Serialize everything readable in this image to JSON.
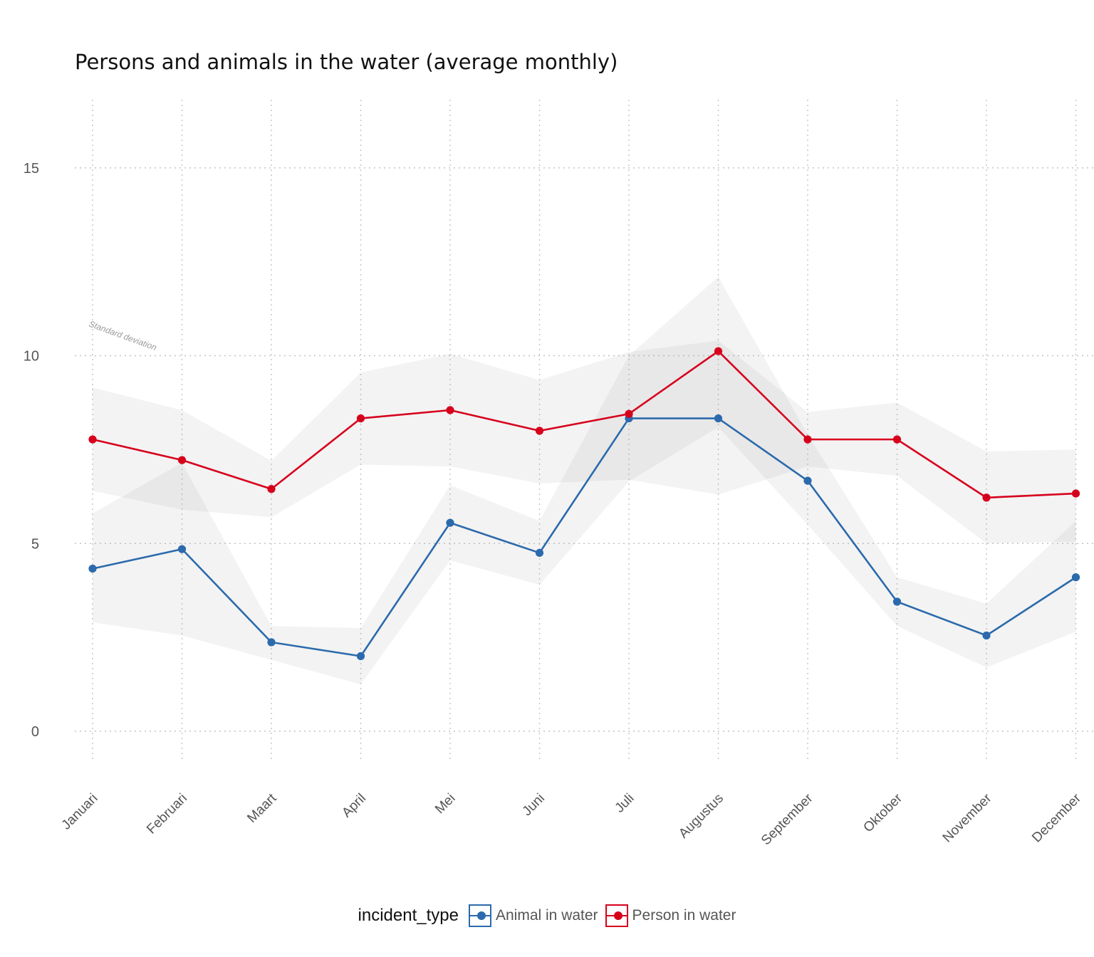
{
  "title": "Persons and animals in the water (average monthly)",
  "band_annotation": "Standard deviation",
  "legend": {
    "title": "incident_type",
    "items": [
      {
        "label": "Animal in water",
        "color": "#2b6aac"
      },
      {
        "label": "Person in water",
        "color": "#d7001c"
      }
    ]
  },
  "chart_data": {
    "type": "line",
    "title": "Persons and animals in the water (average monthly)",
    "xlabel": "",
    "ylabel": "",
    "categories": [
      "Januari",
      "Februari",
      "Maart",
      "April",
      "Mei",
      "Juni",
      "Juli",
      "Augustus",
      "September",
      "Oktober",
      "November",
      "December"
    ],
    "ylim": [
      -0.8,
      16.8
    ],
    "yticks": [
      0,
      5,
      10,
      15
    ],
    "grid": true,
    "legend_position": "bottom",
    "series": [
      {
        "name": "Animal in water",
        "color": "#2b6aac",
        "values": [
          4.33,
          4.85,
          2.37,
          2.0,
          5.55,
          4.75,
          8.33,
          8.33,
          6.67,
          3.45,
          2.55,
          4.1
        ],
        "band_lower": [
          2.9,
          2.55,
          1.9,
          1.25,
          4.55,
          3.9,
          6.65,
          8.1,
          5.5,
          2.8,
          1.7,
          2.65
        ],
        "band_upper": [
          5.8,
          7.15,
          2.8,
          2.75,
          6.55,
          5.6,
          10.0,
          12.1,
          7.9,
          4.1,
          3.4,
          5.6
        ]
      },
      {
        "name": "Person in water",
        "color": "#d7001c",
        "values": [
          7.77,
          7.22,
          6.45,
          8.33,
          8.55,
          8.0,
          8.45,
          10.12,
          7.77,
          7.77,
          6.22,
          6.33
        ],
        "band_lower": [
          6.4,
          5.9,
          5.7,
          7.1,
          7.05,
          6.6,
          6.7,
          6.3,
          7.05,
          6.8,
          5.0,
          5.05
        ],
        "band_upper": [
          9.15,
          8.55,
          7.2,
          9.55,
          10.05,
          9.35,
          10.1,
          10.4,
          8.5,
          8.75,
          7.45,
          7.5
        ]
      }
    ]
  }
}
